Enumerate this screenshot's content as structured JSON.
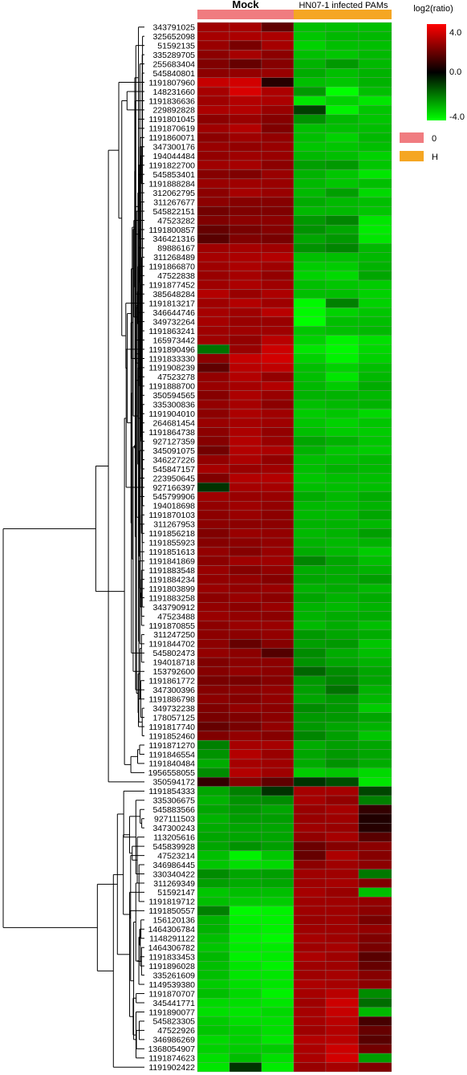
{
  "chart_data": {
    "type": "heatmap",
    "group_headers": {
      "mock": "Mock",
      "infected": "HN07-1 infected PAMs"
    },
    "legend": {
      "title": "log2(ratio)",
      "ticks": [
        "4.0",
        "0.0",
        "-4.0"
      ],
      "vmin": -4.0,
      "vmax": 4.0,
      "low_color": "#00ff00",
      "mid_color": "#000000",
      "high_color": "#ff0000",
      "groups": [
        {
          "label": "0",
          "color": "#f07c80"
        },
        {
          "label": "H",
          "color": "#f5a623"
        }
      ]
    },
    "columns": 6,
    "genes": [
      "343791025",
      "325652098",
      "51592135",
      "335289705",
      "255683404",
      "545840801",
      "1191807960",
      "148231660",
      "1191836636",
      "229892828",
      "1191801045",
      "1191870619",
      "1191860071",
      "347300176",
      "194044484",
      "1191822700",
      "545853401",
      "1191888284",
      "312062795",
      "311267677",
      "545822151",
      "47523282",
      "1191800857",
      "346421316",
      "89886167",
      "311268489",
      "1191866870",
      "47522838",
      "1191877452",
      "385648284",
      "1191813217",
      "346644746",
      "349732264",
      "1191863241",
      "165973442",
      "1191890496",
      "1191833330",
      "1191908239",
      "47523278",
      "1191888700",
      "350594565",
      "335300836",
      "1191904010",
      "264681454",
      "1191864738",
      "927127359",
      "345091075",
      "346227226",
      "545847157",
      "223950645",
      "927166397",
      "545799906",
      "194018698",
      "1191870103",
      "311267953",
      "1191856218",
      "1191855923",
      "1191851613",
      "1191841869",
      "1191883548",
      "1191884234",
      "1191803899",
      "1191883258",
      "343790912",
      "47523488",
      "1191870855",
      "311247250",
      "1191844702",
      "545802473",
      "194018718",
      "153792600",
      "1191861772",
      "347300396",
      "1191886798",
      "349732238",
      "178057125",
      "1191817740",
      "1191852460",
      "1191871270",
      "1191846554",
      "1191840484",
      "1956558055",
      "350594172",
      "1191854333",
      "335306675",
      "545883566",
      "927111503",
      "347300243",
      "113205616",
      "545839928",
      "47523214",
      "346986445",
      "330340422",
      "311269349",
      "51592147",
      "1191819712",
      "1191850557",
      "156120136",
      "1464306784",
      "1148291122",
      "1464306782",
      "1191833453",
      "1191896028",
      "335261609",
      "1149539380",
      "1191870707",
      "345441771",
      "1191890077",
      "545823305",
      "47522926",
      "346986269",
      "1368054907",
      "1191874623",
      "1191902422"
    ],
    "values": [
      [
        2.5,
        2.6,
        1.5,
        -3.0,
        -3.0,
        -3.0
      ],
      [
        2.6,
        2.7,
        2.7,
        -3.1,
        -2.9,
        -2.9
      ],
      [
        2.4,
        1.9,
        2.6,
        -3.3,
        -3.0,
        -3.0
      ],
      [
        2.2,
        2.6,
        2.2,
        -3.0,
        -3.1,
        -2.9
      ],
      [
        2.0,
        1.6,
        2.1,
        -2.8,
        -2.4,
        -2.9
      ],
      [
        2.2,
        2.3,
        2.4,
        -2.7,
        -3.0,
        -2.8
      ],
      [
        3.1,
        3.3,
        0.6,
        -3.0,
        -3.1,
        -2.8
      ],
      [
        2.6,
        3.4,
        2.7,
        -2.4,
        -4.0,
        -3.0
      ],
      [
        2.5,
        2.8,
        2.7,
        -3.6,
        -3.3,
        -3.6
      ],
      [
        2.7,
        2.8,
        2.4,
        -1.0,
        -3.8,
        -3.1
      ],
      [
        2.2,
        2.4,
        2.1,
        -2.3,
        -2.9,
        -3.1
      ],
      [
        2.5,
        2.8,
        2.0,
        -3.0,
        -3.0,
        -3.0
      ],
      [
        2.2,
        2.5,
        2.3,
        -3.0,
        -3.3,
        -2.9
      ],
      [
        2.4,
        2.3,
        2.4,
        -3.1,
        -3.1,
        -3.0
      ],
      [
        2.3,
        2.5,
        2.4,
        -2.9,
        -3.0,
        -3.3
      ],
      [
        2.5,
        2.6,
        2.2,
        -2.5,
        -2.4,
        -3.1
      ],
      [
        2.1,
        2.0,
        2.4,
        -2.8,
        -3.1,
        -3.6
      ],
      [
        2.4,
        2.5,
        2.4,
        -2.9,
        -3.1,
        -3.0
      ],
      [
        2.2,
        2.6,
        2.4,
        -2.9,
        -2.5,
        -3.4
      ],
      [
        2.2,
        2.1,
        2.1,
        -2.7,
        -2.9,
        -3.0
      ],
      [
        1.8,
        2.0,
        2.0,
        -2.9,
        -2.9,
        -3.1
      ],
      [
        2.0,
        2.2,
        2.2,
        -2.4,
        -2.1,
        -3.6
      ],
      [
        1.6,
        1.9,
        2.1,
        -2.3,
        -2.6,
        -3.7
      ],
      [
        1.4,
        2.0,
        1.9,
        -2.6,
        -2.4,
        -3.6
      ],
      [
        2.5,
        2.6,
        2.5,
        -2.3,
        -2.1,
        -2.9
      ],
      [
        2.6,
        2.7,
        2.8,
        -3.0,
        -3.0,
        -2.9
      ],
      [
        2.5,
        2.7,
        2.5,
        -3.2,
        -3.2,
        -2.8
      ],
      [
        2.4,
        2.6,
        2.3,
        -3.3,
        -3.4,
        -2.6
      ],
      [
        2.5,
        2.7,
        2.5,
        -3.0,
        -3.1,
        -3.2
      ],
      [
        2.8,
        2.4,
        2.7,
        -3.0,
        -3.0,
        -3.3
      ],
      [
        2.5,
        2.8,
        2.5,
        -3.9,
        -2.0,
        -3.3
      ],
      [
        2.6,
        2.5,
        2.9,
        -3.9,
        -3.3,
        -3.1
      ],
      [
        2.6,
        2.4,
        2.4,
        -4.0,
        -3.0,
        -3.0
      ],
      [
        2.5,
        2.5,
        2.5,
        -3.1,
        -3.0,
        -2.9
      ],
      [
        2.5,
        2.3,
        2.9,
        -3.3,
        -3.8,
        -3.5
      ],
      [
        -1.8,
        2.4,
        3.2,
        -3.6,
        -3.9,
        -3.4
      ],
      [
        2.2,
        3.1,
        3.3,
        -3.3,
        -3.8,
        -3.3
      ],
      [
        1.5,
        2.9,
        3.0,
        -3.0,
        -3.3,
        -3.0
      ],
      [
        2.3,
        2.8,
        2.3,
        -3.0,
        -3.6,
        -2.9
      ],
      [
        2.4,
        2.6,
        2.8,
        -2.9,
        -3.2,
        -2.7
      ],
      [
        2.1,
        2.7,
        2.4,
        -2.8,
        -2.8,
        -2.9
      ],
      [
        2.3,
        2.6,
        2.2,
        -3.0,
        -2.9,
        -2.8
      ],
      [
        2.2,
        2.7,
        2.5,
        -3.2,
        -3.1,
        -3.4
      ],
      [
        2.4,
        2.6,
        2.5,
        -3.1,
        -3.3,
        -3.1
      ],
      [
        2.2,
        2.7,
        2.3,
        -3.0,
        -3.2,
        -3.2
      ],
      [
        2.1,
        2.8,
        2.4,
        -2.6,
        -2.8,
        -3.1
      ],
      [
        1.8,
        2.8,
        2.7,
        -2.8,
        -3.1,
        -3.2
      ],
      [
        2.3,
        2.7,
        2.3,
        -3.0,
        -3.0,
        -2.9
      ],
      [
        2.6,
        2.4,
        2.5,
        -3.0,
        -2.8,
        -2.9
      ],
      [
        2.0,
        2.8,
        2.8,
        -3.1,
        -3.0,
        -3.0
      ],
      [
        -0.8,
        2.6,
        2.6,
        -3.0,
        -3.0,
        -3.0
      ],
      [
        2.5,
        2.4,
        2.4,
        -2.7,
        -2.9,
        -2.7
      ],
      [
        2.3,
        2.5,
        2.3,
        -2.9,
        -2.9,
        -2.8
      ],
      [
        2.2,
        2.4,
        2.2,
        -2.9,
        -2.9,
        -2.6
      ],
      [
        2.2,
        2.2,
        2.2,
        -2.8,
        -2.8,
        -2.9
      ],
      [
        2.0,
        2.4,
        2.3,
        -2.9,
        -2.8,
        -2.5
      ],
      [
        2.1,
        2.2,
        2.3,
        -2.8,
        -2.9,
        -2.8
      ],
      [
        2.3,
        2.1,
        2.4,
        -2.7,
        -2.9,
        -3.2
      ],
      [
        2.2,
        2.5,
        2.5,
        -2.1,
        -2.6,
        -3.0
      ],
      [
        2.4,
        2.1,
        2.3,
        -2.7,
        -2.7,
        -2.8
      ],
      [
        2.3,
        2.3,
        2.1,
        -2.6,
        -2.7,
        -2.5
      ],
      [
        2.4,
        2.3,
        2.4,
        -2.8,
        -2.7,
        -2.9
      ],
      [
        2.2,
        2.4,
        2.2,
        -2.6,
        -2.8,
        -2.7
      ],
      [
        2.3,
        2.2,
        2.4,
        -2.8,
        -2.9,
        -2.8
      ],
      [
        2.4,
        2.3,
        2.2,
        -2.8,
        -2.7,
        -2.7
      ],
      [
        2.2,
        2.4,
        2.4,
        -2.9,
        -2.7,
        -3.0
      ],
      [
        2.2,
        2.2,
        2.3,
        -2.4,
        -2.6,
        -2.7
      ],
      [
        2.2,
        1.6,
        2.1,
        -2.5,
        -2.4,
        -3.1
      ],
      [
        2.3,
        2.2,
        1.3,
        -2.2,
        -2.7,
        -3.0
      ],
      [
        2.0,
        2.2,
        2.2,
        -2.3,
        -2.6,
        -2.8
      ],
      [
        2.1,
        2.3,
        2.2,
        -1.6,
        -2.2,
        -2.6
      ],
      [
        1.9,
        1.9,
        2.1,
        -2.4,
        -2.1,
        -2.6
      ],
      [
        2.1,
        2.2,
        2.3,
        -2.5,
        -1.8,
        -2.8
      ],
      [
        2.2,
        2.1,
        2.3,
        -2.6,
        -2.4,
        -2.9
      ],
      [
        2.0,
        2.3,
        2.2,
        -2.2,
        -2.4,
        -3.2
      ],
      [
        1.9,
        2.0,
        2.2,
        -2.4,
        -2.4,
        -2.6
      ],
      [
        1.6,
        1.9,
        2.3,
        -2.4,
        -2.6,
        -2.8
      ],
      [
        2.0,
        2.3,
        2.1,
        -2.1,
        -2.5,
        -3.1
      ],
      [
        -2.0,
        2.6,
        2.6,
        -2.7,
        -2.5,
        -2.6
      ],
      [
        -2.3,
        2.8,
        2.4,
        -2.6,
        -2.4,
        -2.6
      ],
      [
        -2.7,
        2.6,
        2.5,
        -2.7,
        -2.3,
        -2.7
      ],
      [
        -2.2,
        2.8,
        2.5,
        -3.2,
        -3.1,
        -3.4
      ],
      [
        0.8,
        2.1,
        1.5,
        -0.8,
        -1.2,
        -3.6
      ],
      [
        -2.6,
        -2.0,
        -0.8,
        2.6,
        2.6,
        -1.1
      ],
      [
        -2.8,
        -2.3,
        -2.2,
        2.6,
        2.3,
        -2.0
      ],
      [
        -2.6,
        -2.4,
        -2.6,
        2.4,
        2.6,
        0.8
      ],
      [
        -2.8,
        -2.5,
        -2.5,
        2.4,
        2.5,
        0.5
      ],
      [
        -2.7,
        -2.6,
        -2.6,
        2.5,
        2.4,
        0.6
      ],
      [
        -2.6,
        -2.6,
        -2.6,
        2.3,
        2.6,
        1.4
      ],
      [
        -2.6,
        -2.3,
        -2.5,
        1.7,
        2.1,
        2.2
      ],
      [
        -3.0,
        -3.8,
        -3.1,
        1.6,
        2.7,
        2.1
      ],
      [
        -3.1,
        -3.5,
        -3.4,
        2.2,
        2.5,
        2.2
      ],
      [
        -2.2,
        -2.6,
        -2.5,
        2.5,
        2.5,
        -1.9
      ],
      [
        -2.5,
        -2.7,
        -2.6,
        2.5,
        2.6,
        2.0
      ],
      [
        -3.1,
        -3.0,
        -3.0,
        2.6,
        2.4,
        -3.0
      ],
      [
        -3.0,
        -3.2,
        -3.2,
        2.5,
        2.5,
        2.3
      ],
      [
        -2.0,
        -3.9,
        -3.8,
        2.5,
        2.5,
        2.2
      ],
      [
        -2.8,
        -3.8,
        -3.8,
        2.4,
        2.5,
        1.9
      ],
      [
        -2.8,
        -3.7,
        -3.8,
        2.5,
        2.5,
        2.3
      ],
      [
        -3.0,
        -3.8,
        -3.9,
        2.6,
        2.5,
        2.0
      ],
      [
        -3.1,
        -3.7,
        -3.7,
        2.5,
        2.6,
        1.9
      ],
      [
        -2.9,
        -3.8,
        -3.7,
        2.7,
        2.5,
        1.4
      ],
      [
        -3.0,
        -3.6,
        -3.8,
        2.5,
        2.5,
        1.6
      ],
      [
        -3.0,
        -3.6,
        -3.6,
        2.5,
        2.6,
        2.1
      ],
      [
        -3.2,
        -3.5,
        -3.6,
        2.7,
        2.6,
        2.2
      ],
      [
        -3.0,
        -3.4,
        -3.8,
        2.6,
        2.9,
        -2.2
      ],
      [
        -3.4,
        -3.5,
        -3.6,
        2.5,
        3.2,
        -1.7
      ],
      [
        -3.5,
        -3.6,
        -3.4,
        2.6,
        3.1,
        -2.9
      ],
      [
        -3.2,
        -3.5,
        -3.5,
        2.6,
        2.9,
        1.1
      ],
      [
        -3.1,
        -3.3,
        -3.5,
        2.5,
        2.8,
        1.6
      ],
      [
        -3.4,
        -3.3,
        -3.6,
        2.8,
        2.9,
        1.4
      ],
      [
        -3.3,
        -3.2,
        -3.2,
        2.7,
        3.2,
        1.8
      ],
      [
        -3.5,
        -3.0,
        -3.5,
        2.7,
        3.3,
        -2.5
      ],
      [
        -3.6,
        -0.8,
        -3.7,
        2.4,
        2.6,
        2.0
      ]
    ]
  }
}
